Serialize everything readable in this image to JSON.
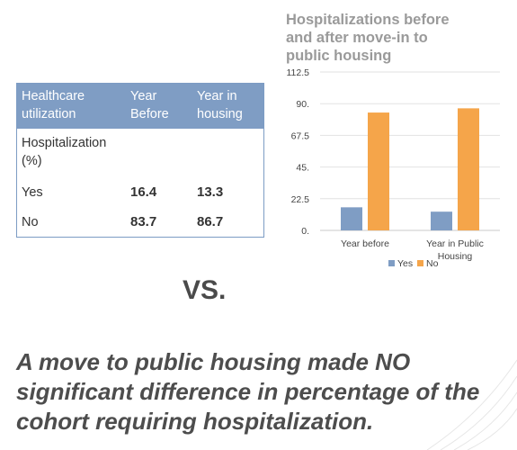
{
  "table": {
    "headers": [
      "Healthcare utilization",
      "Year Before",
      "Year in housing"
    ],
    "section_label": "Hospitalization (%)",
    "rows": [
      {
        "label": "Yes",
        "before": "16.4",
        "housing": "13.3"
      },
      {
        "label": "No",
        "before": "83.7",
        "housing": "86.7"
      }
    ]
  },
  "vs_label": "VS.",
  "conclusion": "A move to public housing made NO significant difference in percentage of the cohort requiring hospitalization.",
  "chart_data": {
    "type": "bar",
    "title": "Hospitalizations before and after move-in to public housing",
    "categories": [
      "Year before",
      "Year in Public Housing"
    ],
    "category_lines": [
      [
        "Year before"
      ],
      [
        "Year in Public",
        "Housing"
      ]
    ],
    "series": [
      {
        "name": "Yes",
        "values": [
          16.4,
          13.3
        ],
        "color": "#7f9dc4"
      },
      {
        "name": "No",
        "values": [
          83.7,
          86.7
        ],
        "color": "#f5a54a"
      }
    ],
    "ylim": [
      0,
      112.5
    ],
    "yticks": [
      0,
      22.5,
      45,
      67.5,
      90,
      112.5
    ],
    "ytick_labels": [
      "0.",
      "22.5",
      "45.",
      "67.5",
      "90.",
      "112.5"
    ],
    "grid": true,
    "legend": "bottom"
  }
}
